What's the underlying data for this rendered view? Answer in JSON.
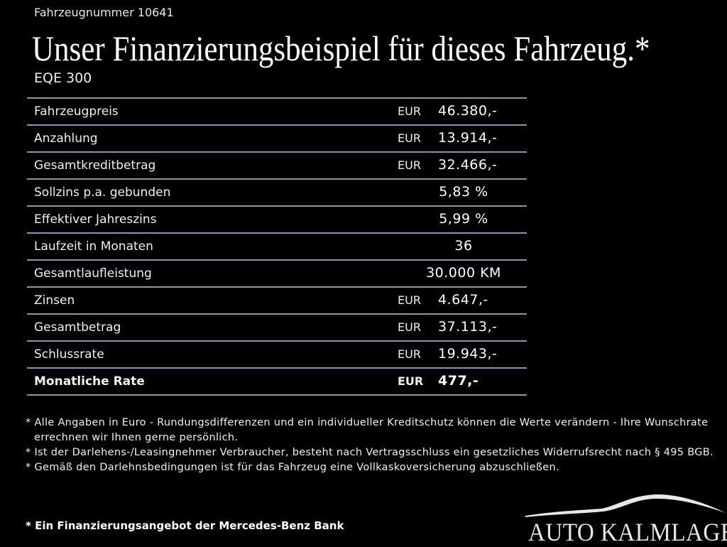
{
  "header": {
    "vehicle_number": "Fahrzeugnummer 10641",
    "title": "Unser Finanzierungsbeispiel für dieses Fahrzeug.*",
    "model": "EQE 300"
  },
  "table": {
    "rows": [
      {
        "label": "Fahrzeugpreis",
        "currency": "EUR",
        "value": "46.380,-"
      },
      {
        "label": "Anzahlung",
        "currency": "EUR",
        "value": "13.914,-"
      },
      {
        "label": "Gesamtkreditbetrag",
        "currency": "EUR",
        "value": "32.466,-"
      },
      {
        "label": "Sollzins p.a. gebunden",
        "currency": "",
        "value": "5,83 %"
      },
      {
        "label": "Effektiver Jahreszins",
        "currency": "",
        "value": "5,99 %"
      },
      {
        "label": "Laufzeit in Monaten",
        "currency": "",
        "value": "36"
      },
      {
        "label": "Gesamtlaufleistung",
        "currency": "",
        "value": "30.000 KM"
      },
      {
        "label": "Zinsen",
        "currency": "EUR",
        "value": "4.647,-"
      },
      {
        "label": "Gesamtbetrag",
        "currency": "EUR",
        "value": "37.113,-"
      },
      {
        "label": "Schlussrate",
        "currency": "EUR",
        "value": "19.943,-"
      },
      {
        "label": "Monatliche Rate",
        "currency": "EUR",
        "value": "477,-"
      }
    ]
  },
  "notes": [
    "* Alle Angaben in Euro - Rundungsdifferenzen und ein individueller Kreditschutz können die Werte verändern - Ihre Wunschrate errechnen wir Ihnen gerne persönlich.",
    "* Ist der Darlehens-/Leasingnehmer Verbraucher, besteht nach Vertragsschluss ein gesetzliches Widerrufsrecht nach § 495 BGB.",
    "* Gemäß den Darlehnsbedingungen ist für das Fahrzeug eine Vollkaskoversicherung abzuschließen."
  ],
  "bottom_note": "* Ein Finanzierungsangebot der Mercedes-Benz Bank",
  "logo": {
    "text": "AUTO KALMLAGE"
  },
  "colors": {
    "background": "#000000",
    "divider": "#8696ad",
    "text": "#ffffff"
  }
}
